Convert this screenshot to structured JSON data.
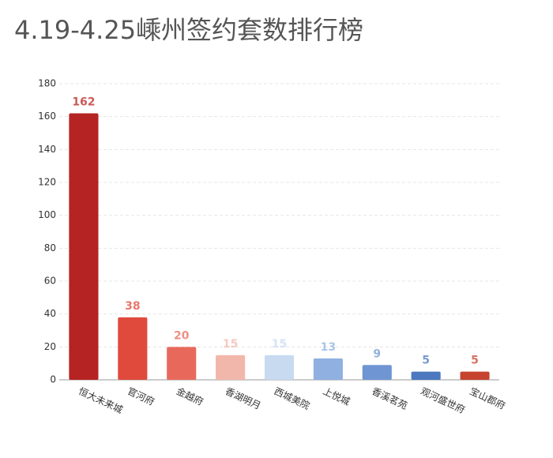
{
  "chart_data": {
    "type": "bar",
    "title": "4.19-4.25嵊州签约套数排行榜",
    "categories": [
      "恒大未来城",
      "官河府",
      "金越府",
      "香湖明月",
      "西城美院",
      "上悦城",
      "香溪茗苑",
      "观河盛世府",
      "宝山郡府"
    ],
    "values": [
      162,
      38,
      20,
      15,
      15,
      13,
      9,
      5,
      5
    ],
    "colors": [
      "#b52422",
      "#e04a3c",
      "#e8695c",
      "#f2b7ab",
      "#c7daf0",
      "#8fb0e1",
      "#6f95d3",
      "#4b78bf",
      "#c6442f"
    ],
    "ylim": [
      0,
      180
    ],
    "yticks": [
      0,
      20,
      40,
      60,
      80,
      100,
      120,
      140,
      160,
      180
    ],
    "grid": true
  }
}
